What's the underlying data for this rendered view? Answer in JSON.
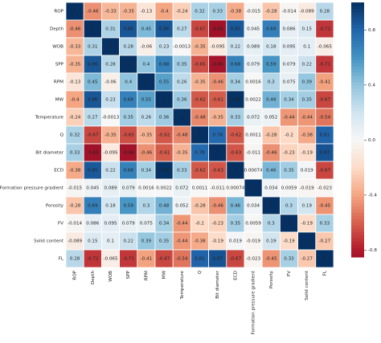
{
  "chart_data": {
    "type": "heatmap",
    "labels": [
      "ROP",
      "Depth",
      "WOB",
      "SPP",
      "RPM",
      "MW",
      "Temperature",
      "Q",
      "Bit diameter",
      "ECD",
      "Formation pressure gradient",
      "Porosity",
      "FV",
      "Solid content",
      "FL"
    ],
    "values": [
      [
        1,
        -0.46,
        -0.33,
        -0.35,
        -0.13,
        -0.4,
        -0.24,
        0.32,
        0.33,
        -0.38,
        -0.015,
        -0.28,
        -0.014,
        -0.089,
        0.28
      ],
      [
        -0.46,
        1,
        0.31,
        0.86,
        0.45,
        0.86,
        0.27,
        -0.67,
        -0.85,
        0.85,
        0.045,
        0.69,
        0.086,
        0.15,
        -0.72
      ],
      [
        -0.33,
        0.31,
        1,
        0.28,
        -0.06,
        0.23,
        -0.0013,
        -0.35,
        -0.095,
        0.22,
        0.089,
        0.18,
        0.095,
        0.1,
        -0.065
      ],
      [
        -0.35,
        0.86,
        0.28,
        1,
        0.4,
        0.68,
        0.35,
        -0.65,
        -0.84,
        0.68,
        0.079,
        0.59,
        0.079,
        0.22,
        -0.71
      ],
      [
        -0.13,
        0.45,
        -0.06,
        0.4,
        1,
        0.55,
        0.26,
        -0.35,
        -0.46,
        0.34,
        0.0016,
        0.3,
        0.075,
        0.39,
        -0.41
      ],
      [
        -0.4,
        0.86,
        0.23,
        0.68,
        0.55,
        1,
        0.36,
        -0.62,
        -0.61,
        0.99,
        0.0022,
        0.48,
        0.34,
        0.35,
        -0.67
      ],
      [
        -0.24,
        0.27,
        -0.0013,
        0.35,
        0.26,
        0.36,
        1,
        -0.48,
        -0.35,
        0.33,
        0.072,
        0.052,
        -0.44,
        -0.44,
        -0.54
      ],
      [
        0.32,
        -0.67,
        -0.35,
        -0.65,
        -0.35,
        -0.62,
        -0.48,
        1,
        0.78,
        -0.62,
        0.0011,
        -0.28,
        -0.2,
        -0.38,
        0.81
      ],
      [
        0.33,
        -0.85,
        -0.095,
        -0.84,
        -0.46,
        -0.61,
        -0.35,
        0.78,
        1,
        -0.63,
        -0.011,
        -0.46,
        -0.23,
        -0.19,
        0.87
      ],
      [
        -0.38,
        0.85,
        0.22,
        0.68,
        0.34,
        0.99,
        0.33,
        -0.62,
        -0.63,
        1,
        0.00074,
        0.46,
        0.35,
        0.019,
        -0.67
      ],
      [
        -0.015,
        0.045,
        0.089,
        0.079,
        0.0016,
        0.0022,
        0.072,
        0.0011,
        -0.011,
        0.00074,
        1,
        0.034,
        0.0059,
        -0.019,
        -0.023
      ],
      [
        -0.28,
        0.69,
        0.18,
        0.59,
        0.3,
        0.48,
        0.052,
        -0.28,
        -0.46,
        0.46,
        0.034,
        1,
        0.3,
        0.19,
        -0.45
      ],
      [
        -0.014,
        0.086,
        0.095,
        0.079,
        0.075,
        0.34,
        -0.44,
        -0.2,
        -0.23,
        0.35,
        0.0059,
        0.3,
        1,
        -0.19,
        0.33
      ],
      [
        -0.089,
        0.15,
        0.1,
        0.22,
        0.39,
        0.35,
        -0.44,
        -0.38,
        -0.19,
        0.019,
        -0.019,
        0.19,
        -0.19,
        1,
        -0.27
      ],
      [
        0.28,
        -0.72,
        -0.065,
        -0.71,
        -0.41,
        -0.67,
        -0.54,
        0.81,
        0.87,
        -0.67,
        -0.023,
        -0.45,
        0.33,
        -0.27,
        1
      ]
    ],
    "clim": [
      -0.85,
      1
    ],
    "colormap": [
      "#67001f",
      "#b2182b",
      "#d6604d",
      "#f4a582",
      "#fddbc7",
      "#f7f7f7",
      "#d1e5f0",
      "#92c5de",
      "#4393c3",
      "#2166ac",
      "#053061"
    ],
    "cticks": [
      {
        "value": -0.8,
        "label": "-0.8"
      },
      {
        "value": -0.4,
        "label": "-0.4"
      },
      {
        "value": 0,
        "label": "0.0"
      },
      {
        "value": 0.4,
        "label": "0.4"
      },
      {
        "value": 0.8,
        "label": "0.8"
      }
    ]
  }
}
